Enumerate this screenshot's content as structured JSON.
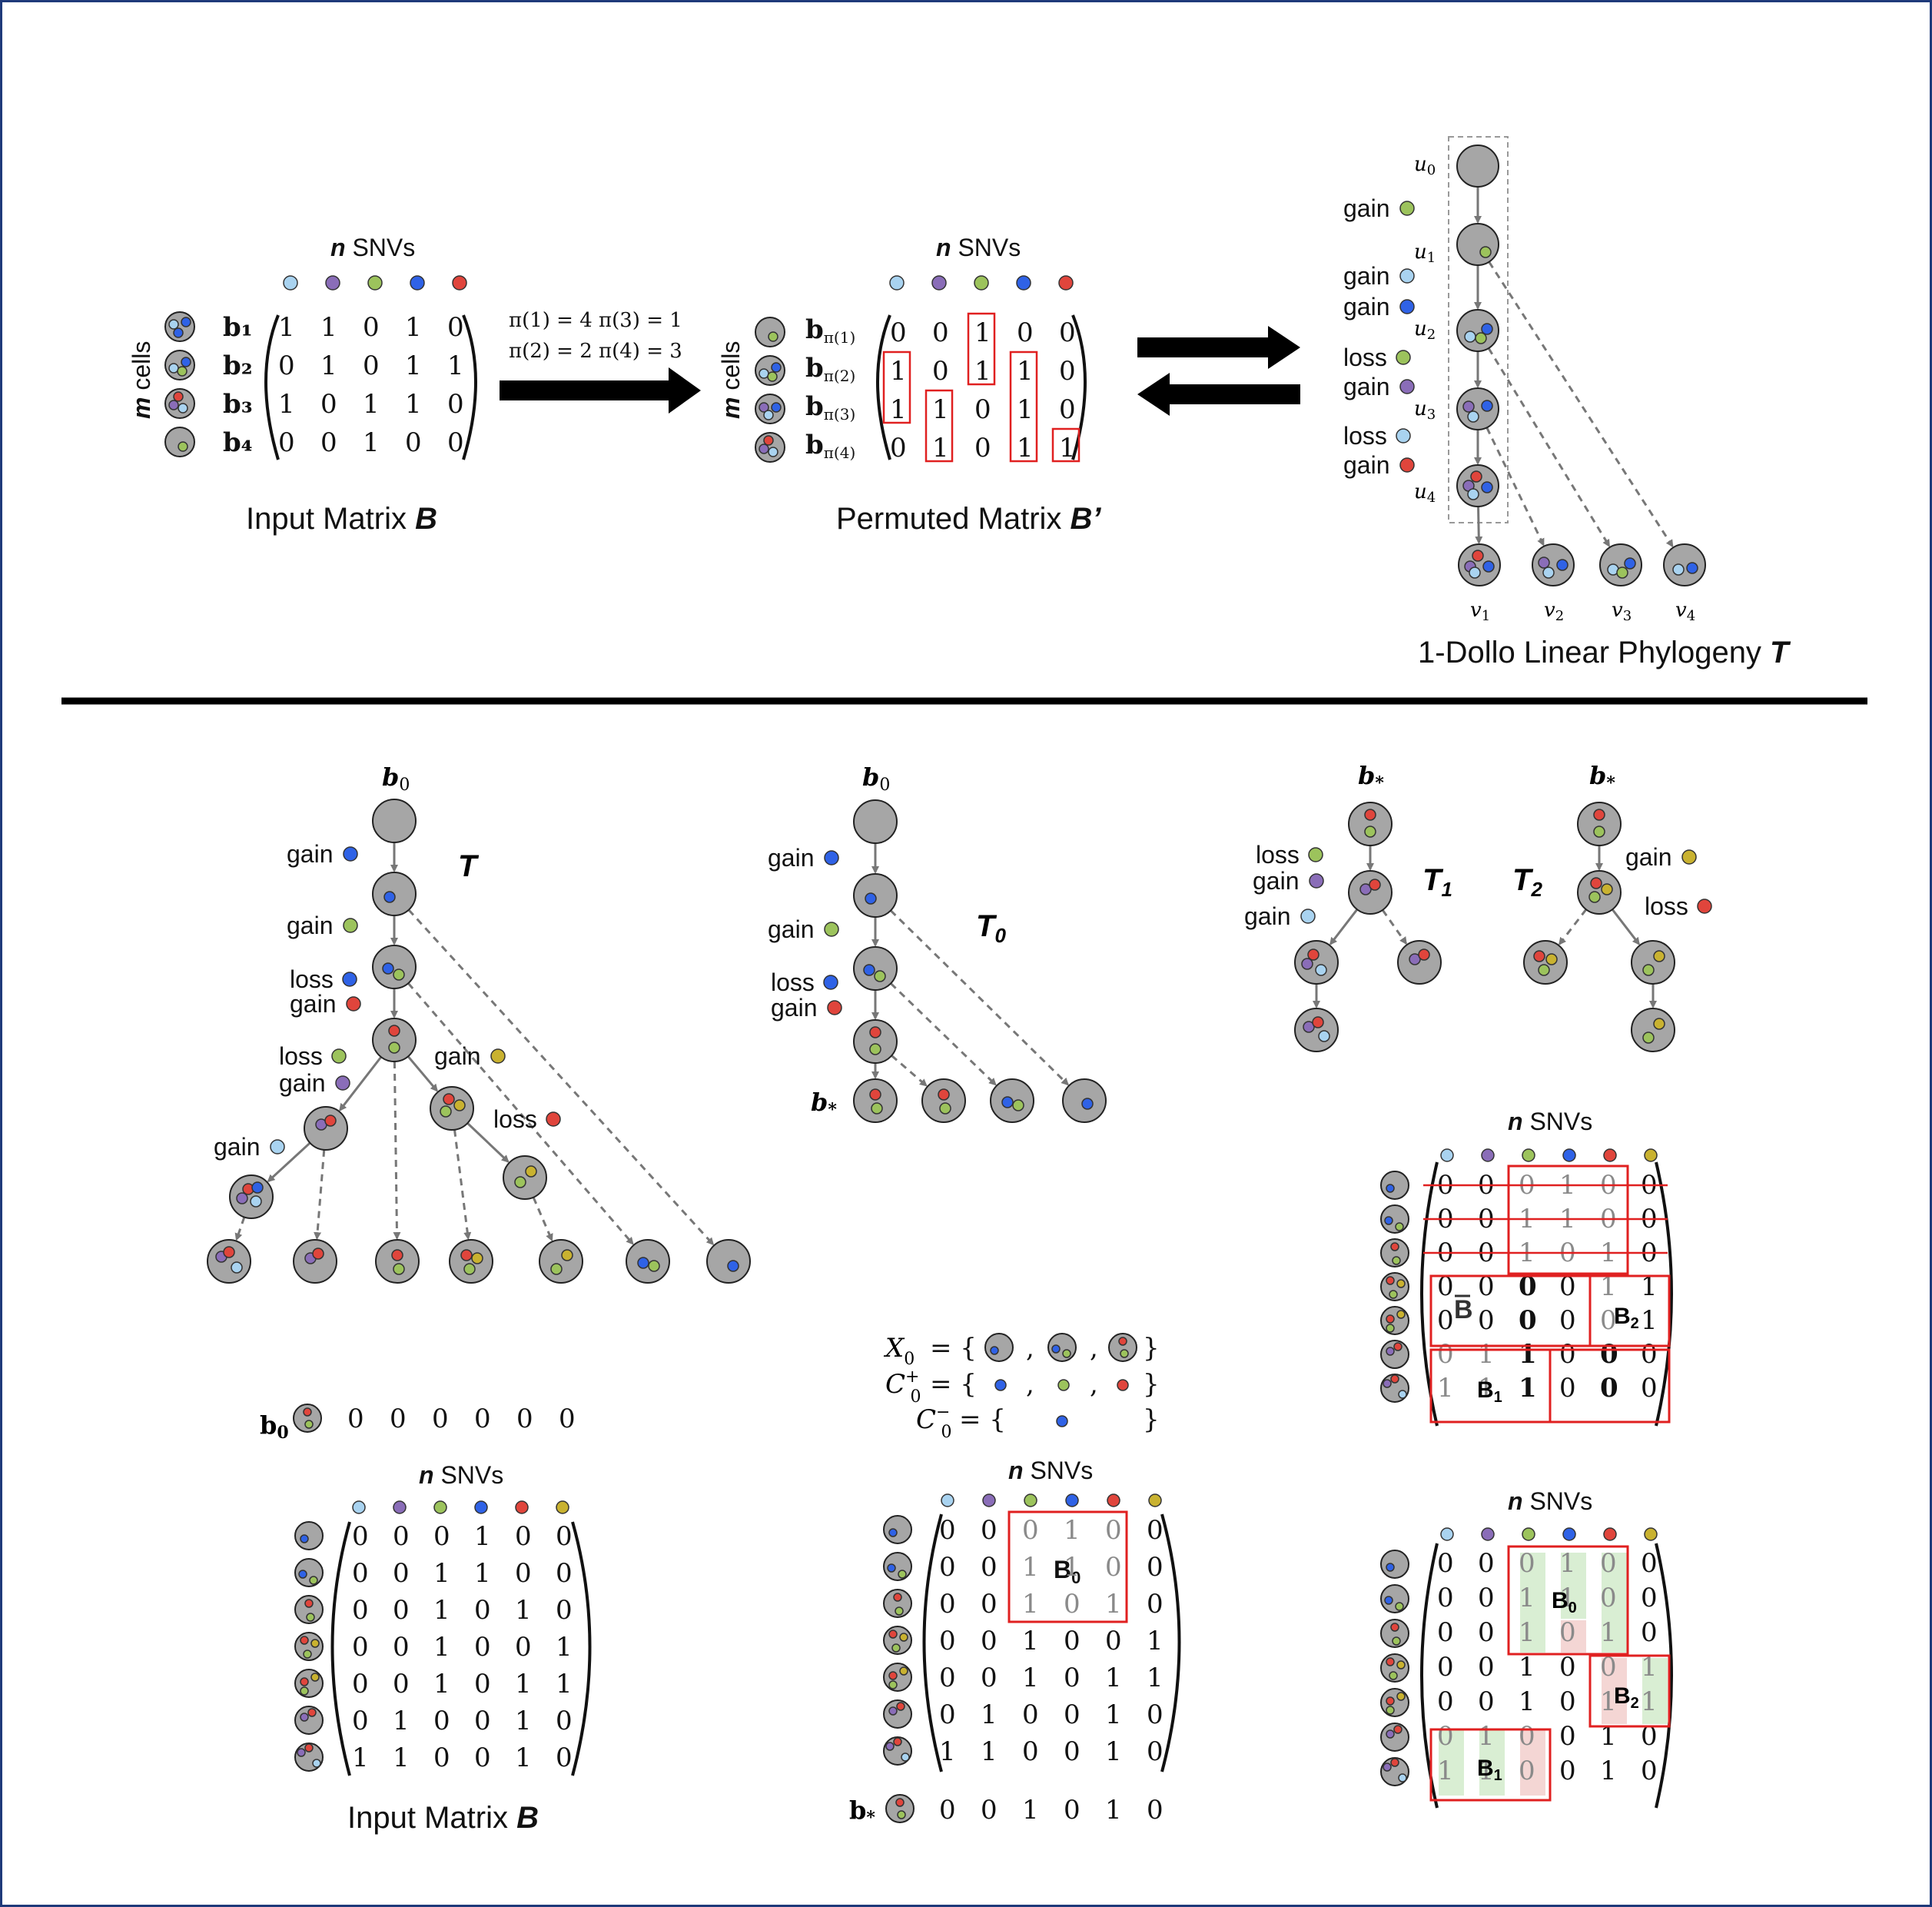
{
  "colors": {
    "light_blue": "#a9d3f0",
    "purple": "#8a6db8",
    "green": "#9cc35c",
    "blue": "#2f62e6",
    "red": "#e0453c",
    "olive": "#c9b230",
    "node_fill": "#a6a6a6",
    "highlight_red": "#e02020",
    "shade_green": "#d9eed3",
    "shade_red": "#f4d6d4"
  },
  "top": {
    "input": {
      "header": "SNVs",
      "header_bold": "n",
      "row_axis": "cells",
      "row_axis_bold": "m",
      "row_labels": [
        "b₁",
        "b₂",
        "b₃",
        "b₄"
      ],
      "dots": [
        "light_blue",
        "purple",
        "green",
        "blue",
        "red"
      ],
      "matrix": [
        [
          "1",
          "1",
          "0",
          "1",
          "0"
        ],
        [
          "0",
          "1",
          "0",
          "1",
          "1"
        ],
        [
          "1",
          "0",
          "1",
          "1",
          "0"
        ],
        [
          "0",
          "0",
          "1",
          "0",
          "0"
        ]
      ],
      "caption": "Input Matrix ",
      "caption_italic": "B"
    },
    "permutation": [
      "π(1) = 4  π(3) = 1",
      "π(2) = 2  π(4) = 3"
    ],
    "permuted": {
      "header": "SNVs",
      "header_bold": "n",
      "row_axis": "cells",
      "row_axis_bold": "m",
      "row_labels": [
        "b",
        "b",
        "b",
        "b"
      ],
      "row_subs": [
        "π(1)",
        "π(2)",
        "π(3)",
        "π(4)"
      ],
      "matrix": [
        [
          "0",
          "0",
          "1",
          "0",
          "0"
        ],
        [
          "1",
          "0",
          "1",
          "1",
          "0"
        ],
        [
          "1",
          "1",
          "0",
          "1",
          "0"
        ],
        [
          "0",
          "1",
          "0",
          "1",
          "1"
        ]
      ],
      "caption": "Permuted Matrix ",
      "caption_italic": "B’"
    },
    "phylogeny": {
      "spine_labels": [
        "u",
        "u",
        "u",
        "u",
        "u"
      ],
      "spine_subs": [
        "0",
        "1",
        "2",
        "3",
        "4"
      ],
      "leaf_labels": [
        "v",
        "v",
        "v",
        "v"
      ],
      "leaf_subs": [
        "1",
        "2",
        "3",
        "4"
      ],
      "events": [
        {
          "text": "gain",
          "dot": "green"
        },
        {
          "text": "gain",
          "dot": "light_blue"
        },
        {
          "text": "gain",
          "dot": "blue"
        },
        {
          "text": "loss",
          "dot": "green"
        },
        {
          "text": "gain",
          "dot": "purple"
        },
        {
          "text": "loss",
          "dot": "light_blue"
        },
        {
          "text": "gain",
          "dot": "red"
        }
      ],
      "caption": "1-Dollo Linear Phylogeny ",
      "caption_italic": "T"
    }
  },
  "bottom": {
    "tree_T": {
      "title": "T",
      "root": "b",
      "root_sub": "0",
      "events": [
        {
          "text": "gain",
          "dot": "blue"
        },
        {
          "text": "gain",
          "dot": "green"
        },
        {
          "text": "loss",
          "dot": "blue"
        },
        {
          "text": "gain",
          "dot": "red"
        },
        {
          "text": "loss",
          "dot": "green"
        },
        {
          "text": "gain",
          "dot": "purple"
        },
        {
          "text": "gain",
          "dot": "olive"
        },
        {
          "text": "gain",
          "dot": "light_blue"
        },
        {
          "text": "loss",
          "dot": "red"
        }
      ]
    },
    "b0_row": {
      "label": "b",
      "sub": "0",
      "values": [
        "0",
        "0",
        "0",
        "0",
        "0",
        "0"
      ]
    },
    "input": {
      "header": "SNVs",
      "header_bold": "n",
      "dots": [
        "light_blue",
        "purple",
        "green",
        "blue",
        "red",
        "olive"
      ],
      "matrix": [
        [
          "0",
          "0",
          "0",
          "1",
          "0",
          "0"
        ],
        [
          "0",
          "0",
          "1",
          "1",
          "0",
          "0"
        ],
        [
          "0",
          "0",
          "1",
          "0",
          "1",
          "0"
        ],
        [
          "0",
          "0",
          "1",
          "0",
          "0",
          "1"
        ],
        [
          "0",
          "0",
          "1",
          "0",
          "1",
          "1"
        ],
        [
          "0",
          "1",
          "0",
          "0",
          "1",
          "0"
        ],
        [
          "1",
          "1",
          "0",
          "0",
          "1",
          "0"
        ]
      ],
      "caption": "Input Matrix ",
      "caption_italic": "B"
    },
    "tree_T0": {
      "title": "T",
      "title_sub": "0",
      "root": "b",
      "root_sub": "0",
      "star": "b",
      "star_sub": "*",
      "events": [
        {
          "text": "gain",
          "dot": "blue"
        },
        {
          "text": "gain",
          "dot": "green"
        },
        {
          "text": "loss",
          "dot": "blue"
        },
        {
          "text": "gain",
          "dot": "red"
        }
      ]
    },
    "sets": [
      {
        "lhs": "X",
        "sub": "0",
        "sup": "",
        "brace_open": "= {",
        "sep": ",",
        "brace_close": "}"
      },
      {
        "lhs": "C",
        "sub": "0",
        "sup": "+",
        "brace_open": "= {",
        "sep": ",",
        "brace_close": "}"
      },
      {
        "lhs": "C",
        "sub": "0",
        "sup": "−",
        "brace_open": "= {",
        "sep": "",
        "brace_close": "}"
      }
    ],
    "middle_matrix": {
      "header": "SNVs",
      "header_bold": "n",
      "block_label": "B",
      "block_sub": "0",
      "matrix": [
        [
          "0",
          "0",
          "0",
          "1",
          "0",
          "0"
        ],
        [
          "0",
          "0",
          "1",
          "1",
          "0",
          "0"
        ],
        [
          "0",
          "0",
          "1",
          "0",
          "1",
          "0"
        ],
        [
          "0",
          "0",
          "1",
          "0",
          "0",
          "1"
        ],
        [
          "0",
          "0",
          "1",
          "0",
          "1",
          "1"
        ],
        [
          "0",
          "1",
          "0",
          "0",
          "1",
          "0"
        ],
        [
          "1",
          "1",
          "0",
          "0",
          "1",
          "0"
        ]
      ],
      "bstar_row": {
        "label": "b",
        "sub": "*",
        "values": [
          "0",
          "0",
          "1",
          "0",
          "1",
          "0"
        ]
      }
    },
    "tree_T1": {
      "title": "T",
      "title_sub": "1",
      "root": "b",
      "root_sub": "*",
      "events": [
        {
          "text": "loss",
          "dot": "green"
        },
        {
          "text": "gain",
          "dot": "purple"
        },
        {
          "text": "gain",
          "dot": "light_blue"
        }
      ]
    },
    "tree_T2": {
      "title": "T",
      "title_sub": "2",
      "root": "b",
      "root_sub": "*",
      "events": [
        {
          "text": "gain",
          "dot": "olive"
        },
        {
          "text": "loss",
          "dot": "red"
        }
      ]
    },
    "right_matrix_1": {
      "header": "SNVs",
      "header_bold": "n",
      "bbar": "B",
      "b1": "B",
      "b1_sub": "1",
      "b2": "B",
      "b2_sub": "2",
      "matrix": [
        [
          "0",
          "0",
          "0",
          "1",
          "0",
          "0"
        ],
        [
          "0",
          "0",
          "1",
          "1",
          "0",
          "0"
        ],
        [
          "0",
          "0",
          "1",
          "0",
          "1",
          "0"
        ],
        [
          "0",
          "0",
          "0",
          "0",
          "1",
          "1"
        ],
        [
          "0",
          "0",
          "0",
          "0",
          "0",
          "1"
        ],
        [
          "0",
          "1",
          "1",
          "0",
          "0",
          "0"
        ],
        [
          "1",
          "1",
          "1",
          "0",
          "0",
          "0"
        ]
      ]
    },
    "right_matrix_2": {
      "header": "SNVs",
      "header_bold": "n",
      "b0": "B",
      "b0_sub": "0",
      "b1": "B",
      "b1_sub": "1",
      "b2": "B",
      "b2_sub": "2",
      "matrix": [
        [
          "0",
          "0",
          "0",
          "1",
          "0",
          "0"
        ],
        [
          "0",
          "0",
          "1",
          "1",
          "0",
          "0"
        ],
        [
          "0",
          "0",
          "1",
          "0",
          "1",
          "0"
        ],
        [
          "0",
          "0",
          "1",
          "0",
          "0",
          "1"
        ],
        [
          "0",
          "0",
          "1",
          "0",
          "1",
          "1"
        ],
        [
          "0",
          "1",
          "0",
          "0",
          "1",
          "0"
        ],
        [
          "1",
          "1",
          "0",
          "0",
          "1",
          "0"
        ]
      ]
    }
  }
}
